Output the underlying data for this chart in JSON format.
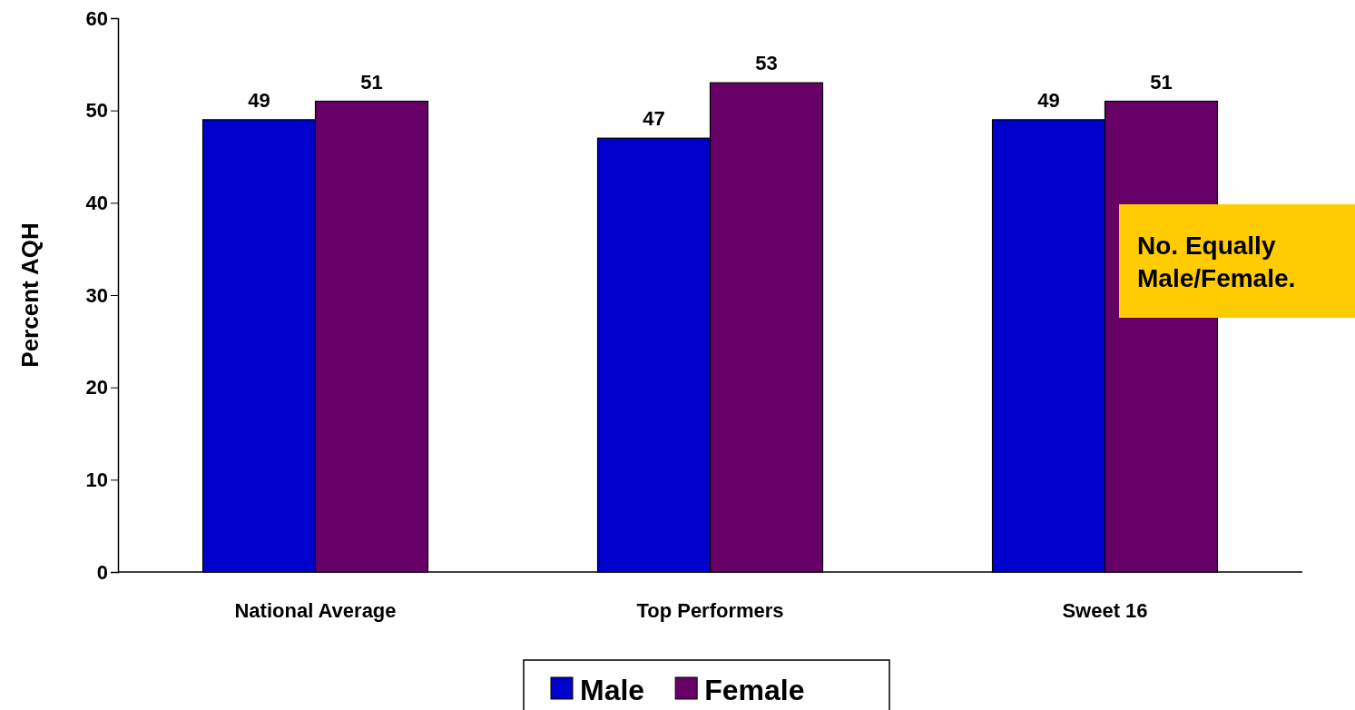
{
  "chart_data": {
    "type": "bar",
    "ylabel": "Percent AQH",
    "categories": [
      "National Average",
      "Top Performers",
      "Sweet 16"
    ],
    "series": [
      {
        "name": "Male",
        "color": "#0000cc",
        "values": [
          49,
          47,
          49
        ]
      },
      {
        "name": "Female",
        "color": "#660066",
        "values": [
          51,
          53,
          51
        ]
      }
    ],
    "ylim": [
      0,
      60
    ],
    "yticks": [
      0,
      10,
      20,
      30,
      40,
      50,
      60
    ],
    "grid": false,
    "legend": "bottom",
    "data_labels": true,
    "annotations": [
      "No. Equally Male/Female."
    ]
  }
}
